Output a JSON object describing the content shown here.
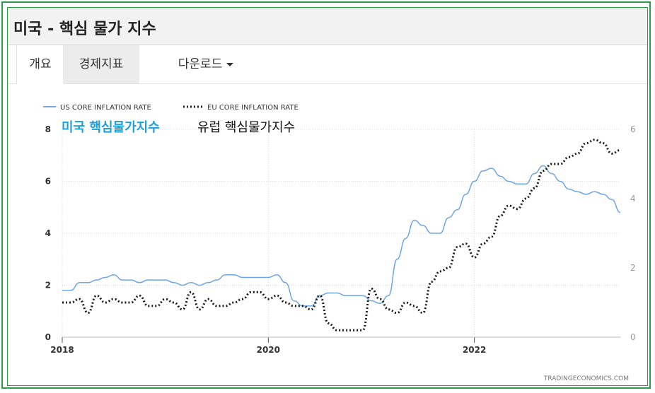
{
  "page": {
    "title": "미국 - 핵심 물가 지수",
    "tabs": [
      {
        "label": "개요",
        "active": true
      },
      {
        "label": "경제지표",
        "active": false
      },
      {
        "label": "다운로드",
        "dropdown": true
      }
    ]
  },
  "colors": {
    "us_series": "#6ea6e6",
    "eu_series": "#1a1a1a",
    "annotation_us": "#1ca0e0",
    "border": "#2e9d4a"
  },
  "chart_data": {
    "type": "line",
    "legend": {
      "position": "top-left",
      "entries": [
        "US CORE INFLATION RATE",
        "EU CORE INFLATION RATE"
      ]
    },
    "annotations": [
      "미국 핵심물가지수",
      "유럽 핵심물가지수"
    ],
    "watermark": "TRADINGECONOMICS.COM",
    "x_ticks": [
      "2018",
      "2020",
      "2022"
    ],
    "xlim": [
      "2018-01",
      "2023-06"
    ],
    "y_left": {
      "ticks": [
        "0",
        "2",
        "4",
        "6",
        "8"
      ],
      "ylim": [
        0,
        8
      ]
    },
    "y_right": {
      "ticks": [
        "0",
        "2",
        "4",
        "6"
      ],
      "ylim": [
        0,
        6
      ]
    },
    "grid": true,
    "series": [
      {
        "name": "US CORE INFLATION RATE",
        "axis": "left",
        "style": "solid",
        "x": [
          "2018-01",
          "2018-02",
          "2018-03",
          "2018-04",
          "2018-05",
          "2018-06",
          "2018-07",
          "2018-08",
          "2018-09",
          "2018-10",
          "2018-11",
          "2018-12",
          "2019-01",
          "2019-02",
          "2019-03",
          "2019-04",
          "2019-05",
          "2019-06",
          "2019-07",
          "2019-08",
          "2019-09",
          "2019-10",
          "2019-11",
          "2019-12",
          "2020-01",
          "2020-02",
          "2020-03",
          "2020-04",
          "2020-05",
          "2020-06",
          "2020-07",
          "2020-08",
          "2020-09",
          "2020-10",
          "2020-11",
          "2020-12",
          "2021-01",
          "2021-02",
          "2021-03",
          "2021-04",
          "2021-05",
          "2021-06",
          "2021-07",
          "2021-08",
          "2021-09",
          "2021-10",
          "2021-11",
          "2021-12",
          "2022-01",
          "2022-02",
          "2022-03",
          "2022-04",
          "2022-05",
          "2022-06",
          "2022-07",
          "2022-08",
          "2022-09",
          "2022-10",
          "2022-11",
          "2022-12",
          "2023-01",
          "2023-02",
          "2023-03",
          "2023-04",
          "2023-05",
          "2023-06"
        ],
        "values": [
          1.8,
          1.8,
          2.1,
          2.1,
          2.2,
          2.3,
          2.4,
          2.2,
          2.2,
          2.1,
          2.2,
          2.2,
          2.2,
          2.1,
          2.0,
          2.1,
          2.0,
          2.1,
          2.2,
          2.4,
          2.4,
          2.3,
          2.3,
          2.3,
          2.3,
          2.4,
          2.1,
          1.4,
          1.2,
          1.2,
          1.6,
          1.7,
          1.7,
          1.6,
          1.6,
          1.6,
          1.4,
          1.3,
          1.6,
          3.0,
          3.8,
          4.5,
          4.3,
          4.0,
          4.0,
          4.6,
          4.9,
          5.5,
          6.0,
          6.4,
          6.5,
          6.2,
          6.0,
          5.9,
          5.9,
          6.3,
          6.6,
          6.3,
          6.0,
          5.7,
          5.6,
          5.5,
          5.6,
          5.5,
          5.3,
          4.8
        ]
      },
      {
        "name": "EU CORE INFLATION RATE",
        "axis": "right",
        "style": "dotted",
        "x": [
          "2018-01",
          "2018-02",
          "2018-03",
          "2018-04",
          "2018-05",
          "2018-06",
          "2018-07",
          "2018-08",
          "2018-09",
          "2018-10",
          "2018-11",
          "2018-12",
          "2019-01",
          "2019-02",
          "2019-03",
          "2019-04",
          "2019-05",
          "2019-06",
          "2019-07",
          "2019-08",
          "2019-09",
          "2019-10",
          "2019-11",
          "2019-12",
          "2020-01",
          "2020-02",
          "2020-03",
          "2020-04",
          "2020-05",
          "2020-06",
          "2020-07",
          "2020-08",
          "2020-09",
          "2020-10",
          "2020-11",
          "2020-12",
          "2021-01",
          "2021-02",
          "2021-03",
          "2021-04",
          "2021-05",
          "2021-06",
          "2021-07",
          "2021-08",
          "2021-09",
          "2021-10",
          "2021-11",
          "2021-12",
          "2022-01",
          "2022-02",
          "2022-03",
          "2022-04",
          "2022-05",
          "2022-06",
          "2022-07",
          "2022-08",
          "2022-09",
          "2022-10",
          "2022-11",
          "2022-12",
          "2023-01",
          "2023-02",
          "2023-03",
          "2023-04",
          "2023-05",
          "2023-06"
        ],
        "values": [
          1.0,
          1.0,
          1.1,
          0.7,
          1.2,
          1.0,
          1.1,
          1.0,
          1.0,
          1.2,
          0.9,
          0.9,
          1.1,
          1.0,
          0.8,
          1.3,
          0.8,
          1.1,
          0.9,
          0.9,
          1.0,
          1.1,
          1.3,
          1.3,
          1.1,
          1.2,
          1.0,
          0.9,
          0.9,
          0.8,
          1.2,
          0.4,
          0.2,
          0.2,
          0.2,
          0.2,
          1.4,
          1.1,
          0.8,
          0.7,
          1.0,
          0.9,
          0.7,
          1.6,
          1.9,
          2.0,
          2.6,
          2.7,
          2.3,
          2.7,
          2.9,
          3.5,
          3.8,
          3.7,
          4.0,
          4.3,
          4.8,
          5.0,
          5.0,
          5.2,
          5.3,
          5.6,
          5.7,
          5.6,
          5.3,
          5.4
        ]
      }
    ]
  }
}
